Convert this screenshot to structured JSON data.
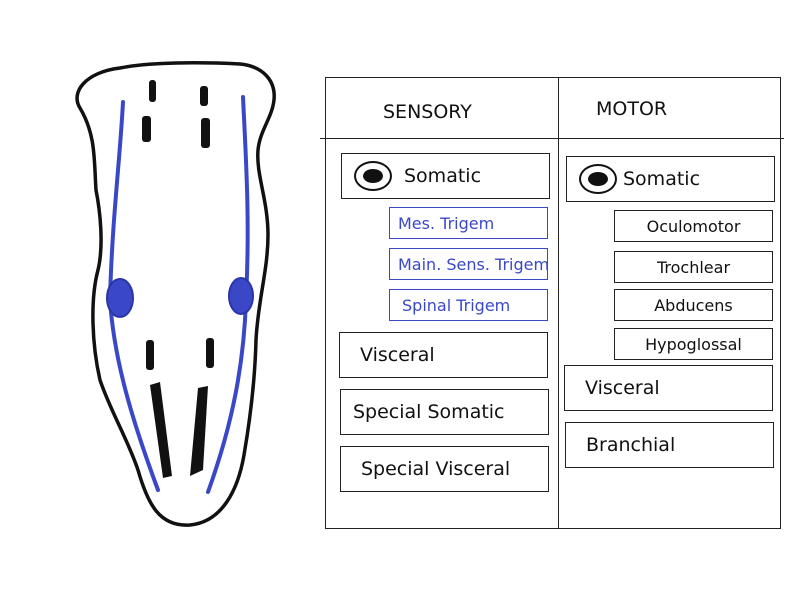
{
  "colors": {
    "line": "#111111",
    "nerve_blue": "#3a48c8",
    "background": "#ffffff"
  },
  "table": {
    "sensory": {
      "header": "SENSORY",
      "somatic": {
        "label": "Somatic",
        "items": [
          "Mes. Trigem",
          "Main. Sens. Trigem",
          "Spinal Trigem"
        ]
      },
      "visceral": "Visceral",
      "special_somatic": "Special Somatic",
      "special_visceral": "Special Visceral"
    },
    "motor": {
      "header": "MOTOR",
      "somatic": {
        "label": "Somatic",
        "items": [
          "Oculomotor",
          "Trochlear",
          "Abducens",
          "Hypoglossal"
        ]
      },
      "visceral": "Visceral",
      "branchial": "Branchial"
    }
  }
}
